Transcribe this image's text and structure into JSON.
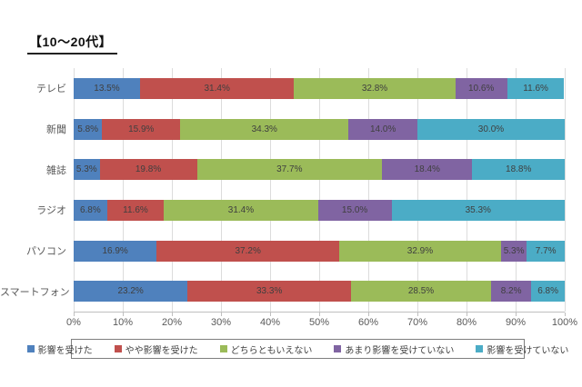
{
  "title": "【10〜20代】",
  "chart_data": {
    "type": "bar",
    "orientation": "horizontal",
    "stacked": true,
    "title": "【10〜20代】",
    "xlabel": "",
    "ylabel": "",
    "xlim": [
      0,
      100
    ],
    "grid": true,
    "legend_position": "bottom",
    "categories": [
      "テレビ",
      "新聞",
      "雑誌",
      "ラジオ",
      "パソコン",
      "スマートフォン"
    ],
    "x_ticks": [
      "0%",
      "10%",
      "20%",
      "30%",
      "40%",
      "50%",
      "60%",
      "70%",
      "80%",
      "90%",
      "100%"
    ],
    "series": [
      {
        "name": "影響を受けた",
        "color": "#4F81BD",
        "values": [
          13.5,
          5.8,
          5.3,
          6.8,
          16.9,
          23.2
        ],
        "labels": [
          "13.5%",
          "5.8%",
          "5.3%",
          "6.8%",
          "16.9%",
          "23.2%"
        ]
      },
      {
        "name": "やや影響を受けた",
        "color": "#C0504D",
        "values": [
          31.4,
          15.9,
          19.8,
          11.6,
          37.2,
          33.3
        ],
        "labels": [
          "31.4%",
          "15.9%",
          "19.8%",
          "11.6%",
          "37.2%",
          "33.3%"
        ]
      },
      {
        "name": "どちらともいえない",
        "color": "#9BBB59",
        "values": [
          32.8,
          34.3,
          37.7,
          31.4,
          32.9,
          28.5
        ],
        "labels": [
          "32.8%",
          "34.3%",
          "37.7%",
          "31.4%",
          "32.9%",
          "28.5%"
        ]
      },
      {
        "name": "あまり影響を受けていない",
        "color": "#8064A2",
        "values": [
          10.6,
          14.0,
          18.4,
          15.0,
          5.3,
          8.2
        ],
        "labels": [
          "10.6%",
          "14.0%",
          "18.4%",
          "15.0%",
          "5.3%",
          "8.2%"
        ]
      },
      {
        "name": "影響を受けていない",
        "color": "#4BACC6",
        "values": [
          11.6,
          30.0,
          18.8,
          35.3,
          7.7,
          6.8
        ],
        "labels": [
          "11.6%",
          "30.0%",
          "18.8%",
          "35.3%",
          "7.7%",
          "6.8%"
        ]
      }
    ]
  }
}
